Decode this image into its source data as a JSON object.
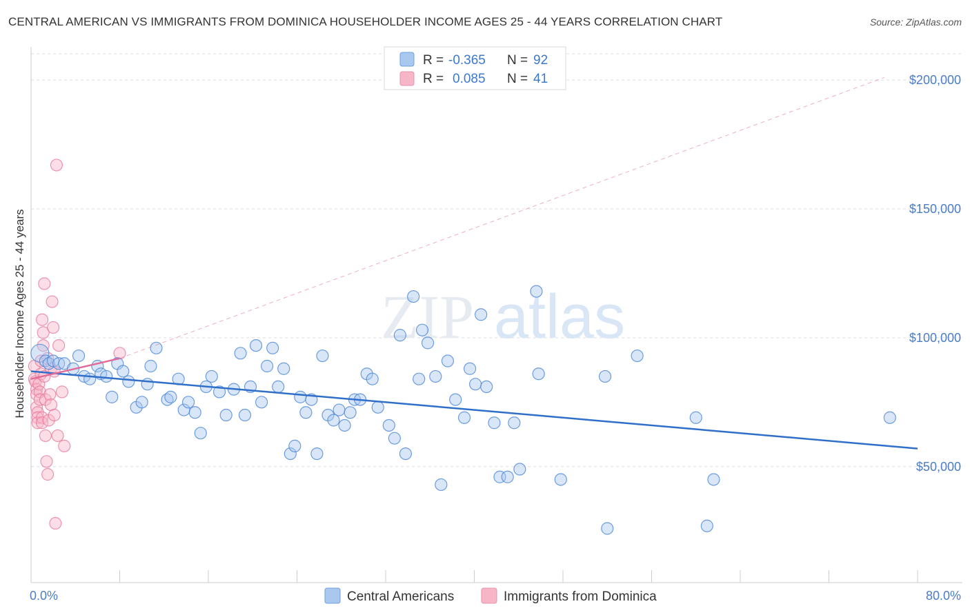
{
  "title": "CENTRAL AMERICAN VS IMMIGRANTS FROM DOMINICA HOUSEHOLDER INCOME AGES 25 - 44 YEARS CORRELATION CHART",
  "source": "Source: ZipAtlas.com",
  "watermark": {
    "zip": "ZIP",
    "atlas": "atlas"
  },
  "legend": {
    "rows": [
      {
        "r_label": "R =",
        "r_value": "-0.365",
        "n_label": "N =",
        "n_value": "92",
        "color": "#a8c8f0"
      },
      {
        "r_label": "R =",
        "r_value": "0.085",
        "n_label": "N =",
        "n_value": "41",
        "color": "#f7b6c8"
      }
    ]
  },
  "bottom_legend": [
    "Central Americans",
    "Immigrants from Dominica"
  ],
  "colors": {
    "blue": "#4a86d8",
    "blue_fill": "#a8c8f0",
    "blue_line": "#2f6fc9",
    "pink": "#e87aa0",
    "pink_fill": "#f7b6c8",
    "pink_line": "#e06b98",
    "axis_text": "#4a7cc7"
  },
  "chart_data": {
    "type": "scatter",
    "xlabel": "",
    "ylabel": "Householder Income Ages 25 - 44 years",
    "xlim": [
      0,
      80
    ],
    "ylim": [
      5000,
      215000
    ],
    "x_tick_labels": [
      {
        "x": 0,
        "label": "0.0%"
      },
      {
        "x": 80,
        "label": "80.0%"
      }
    ],
    "y_tick_labels": [
      {
        "y": 50000,
        "label": "$50,000"
      },
      {
        "y": 100000,
        "label": "$100,000"
      },
      {
        "y": 150000,
        "label": "$150,000"
      },
      {
        "y": 200000,
        "label": "$200,000"
      }
    ],
    "grid": true,
    "series": [
      {
        "name": "Central Americans",
        "color": "#4a86d8",
        "trend": {
          "x": [
            0,
            80
          ],
          "y": [
            87000,
            57000
          ]
        },
        "points": [
          [
            0.8,
            94000
          ],
          [
            1.3,
            91000
          ],
          [
            1.6,
            90000
          ],
          [
            2.0,
            91000
          ],
          [
            2.5,
            90000
          ],
          [
            3.0,
            90000
          ],
          [
            3.8,
            88000
          ],
          [
            4.3,
            93000
          ],
          [
            4.8,
            85000
          ],
          [
            5.3,
            84000
          ],
          [
            6.0,
            89000
          ],
          [
            6.3,
            86000
          ],
          [
            6.8,
            85000
          ],
          [
            7.3,
            77000
          ],
          [
            7.8,
            90000
          ],
          [
            8.3,
            87000
          ],
          [
            8.8,
            83000
          ],
          [
            9.5,
            73000
          ],
          [
            10.0,
            75000
          ],
          [
            10.5,
            82000
          ],
          [
            10.8,
            89000
          ],
          [
            11.3,
            96000
          ],
          [
            12.3,
            76000
          ],
          [
            12.6,
            77000
          ],
          [
            13.3,
            84000
          ],
          [
            13.8,
            72000
          ],
          [
            14.2,
            75000
          ],
          [
            14.8,
            71000
          ],
          [
            15.3,
            63000
          ],
          [
            15.8,
            81000
          ],
          [
            16.3,
            85000
          ],
          [
            17.0,
            79000
          ],
          [
            17.6,
            70000
          ],
          [
            18.3,
            80000
          ],
          [
            18.9,
            94000
          ],
          [
            19.3,
            70000
          ],
          [
            19.8,
            81000
          ],
          [
            20.3,
            97000
          ],
          [
            20.8,
            75000
          ],
          [
            21.3,
            89000
          ],
          [
            21.8,
            96000
          ],
          [
            22.3,
            81000
          ],
          [
            22.8,
            88000
          ],
          [
            23.4,
            55000
          ],
          [
            23.8,
            58000
          ],
          [
            24.3,
            77000
          ],
          [
            24.8,
            71000
          ],
          [
            25.3,
            76000
          ],
          [
            25.8,
            55000
          ],
          [
            26.3,
            93000
          ],
          [
            26.8,
            70000
          ],
          [
            27.3,
            68000
          ],
          [
            27.8,
            72000
          ],
          [
            28.3,
            66000
          ],
          [
            28.8,
            71000
          ],
          [
            29.2,
            76000
          ],
          [
            29.7,
            76000
          ],
          [
            30.3,
            86000
          ],
          [
            30.8,
            84000
          ],
          [
            31.3,
            73000
          ],
          [
            32.3,
            66000
          ],
          [
            32.8,
            61000
          ],
          [
            33.3,
            101000
          ],
          [
            33.8,
            55000
          ],
          [
            34.5,
            116000
          ],
          [
            35.0,
            84000
          ],
          [
            35.3,
            103000
          ],
          [
            35.8,
            98000
          ],
          [
            36.5,
            85000
          ],
          [
            37.0,
            43000
          ],
          [
            37.6,
            91000
          ],
          [
            38.3,
            76000
          ],
          [
            39.1,
            69000
          ],
          [
            39.6,
            88000
          ],
          [
            40.1,
            82000
          ],
          [
            40.6,
            109000
          ],
          [
            41.1,
            81000
          ],
          [
            41.8,
            67000
          ],
          [
            42.3,
            46000
          ],
          [
            43.0,
            46000
          ],
          [
            43.6,
            67000
          ],
          [
            44.1,
            49000
          ],
          [
            45.6,
            118000
          ],
          [
            45.8,
            86000
          ],
          [
            47.8,
            45000
          ],
          [
            51.8,
            85000
          ],
          [
            52.0,
            26000
          ],
          [
            54.7,
            93000
          ],
          [
            60.0,
            69000
          ],
          [
            61.0,
            27000
          ],
          [
            61.6,
            45000
          ],
          [
            77.5,
            69000
          ]
        ]
      },
      {
        "name": "Immigrants from Dominica",
        "color": "#e87aa0",
        "trend": {
          "x": [
            0,
            8
          ],
          "y": [
            84000,
            92000
          ]
        },
        "dashed_extension": {
          "x": [
            8,
            77
          ],
          "y": [
            92000,
            201000
          ]
        },
        "points": [
          [
            0.3,
            89000
          ],
          [
            0.3,
            84000
          ],
          [
            0.4,
            83000
          ],
          [
            0.5,
            80000
          ],
          [
            0.5,
            78000
          ],
          [
            0.5,
            73000
          ],
          [
            0.6,
            71000
          ],
          [
            0.6,
            69000
          ],
          [
            0.6,
            67000
          ],
          [
            0.7,
            82000
          ],
          [
            0.8,
            79000
          ],
          [
            0.8,
            76000
          ],
          [
            0.9,
            91000
          ],
          [
            0.9,
            86000
          ],
          [
            1.0,
            69000
          ],
          [
            1.0,
            67000
          ],
          [
            1.0,
            107000
          ],
          [
            1.1,
            102000
          ],
          [
            1.1,
            97000
          ],
          [
            1.2,
            121000
          ],
          [
            1.2,
            85000
          ],
          [
            1.3,
            76000
          ],
          [
            1.3,
            62000
          ],
          [
            1.4,
            52000
          ],
          [
            1.5,
            47000
          ],
          [
            1.5,
            92000
          ],
          [
            1.6,
            68000
          ],
          [
            1.7,
            78000
          ],
          [
            1.8,
            88000
          ],
          [
            1.8,
            74000
          ],
          [
            1.9,
            114000
          ],
          [
            2.0,
            104000
          ],
          [
            2.1,
            87000
          ],
          [
            2.1,
            70000
          ],
          [
            2.2,
            28000
          ],
          [
            2.3,
            167000
          ],
          [
            2.4,
            62000
          ],
          [
            2.5,
            97000
          ],
          [
            2.8,
            79000
          ],
          [
            3.0,
            58000
          ],
          [
            8.0,
            94000
          ]
        ]
      }
    ]
  }
}
